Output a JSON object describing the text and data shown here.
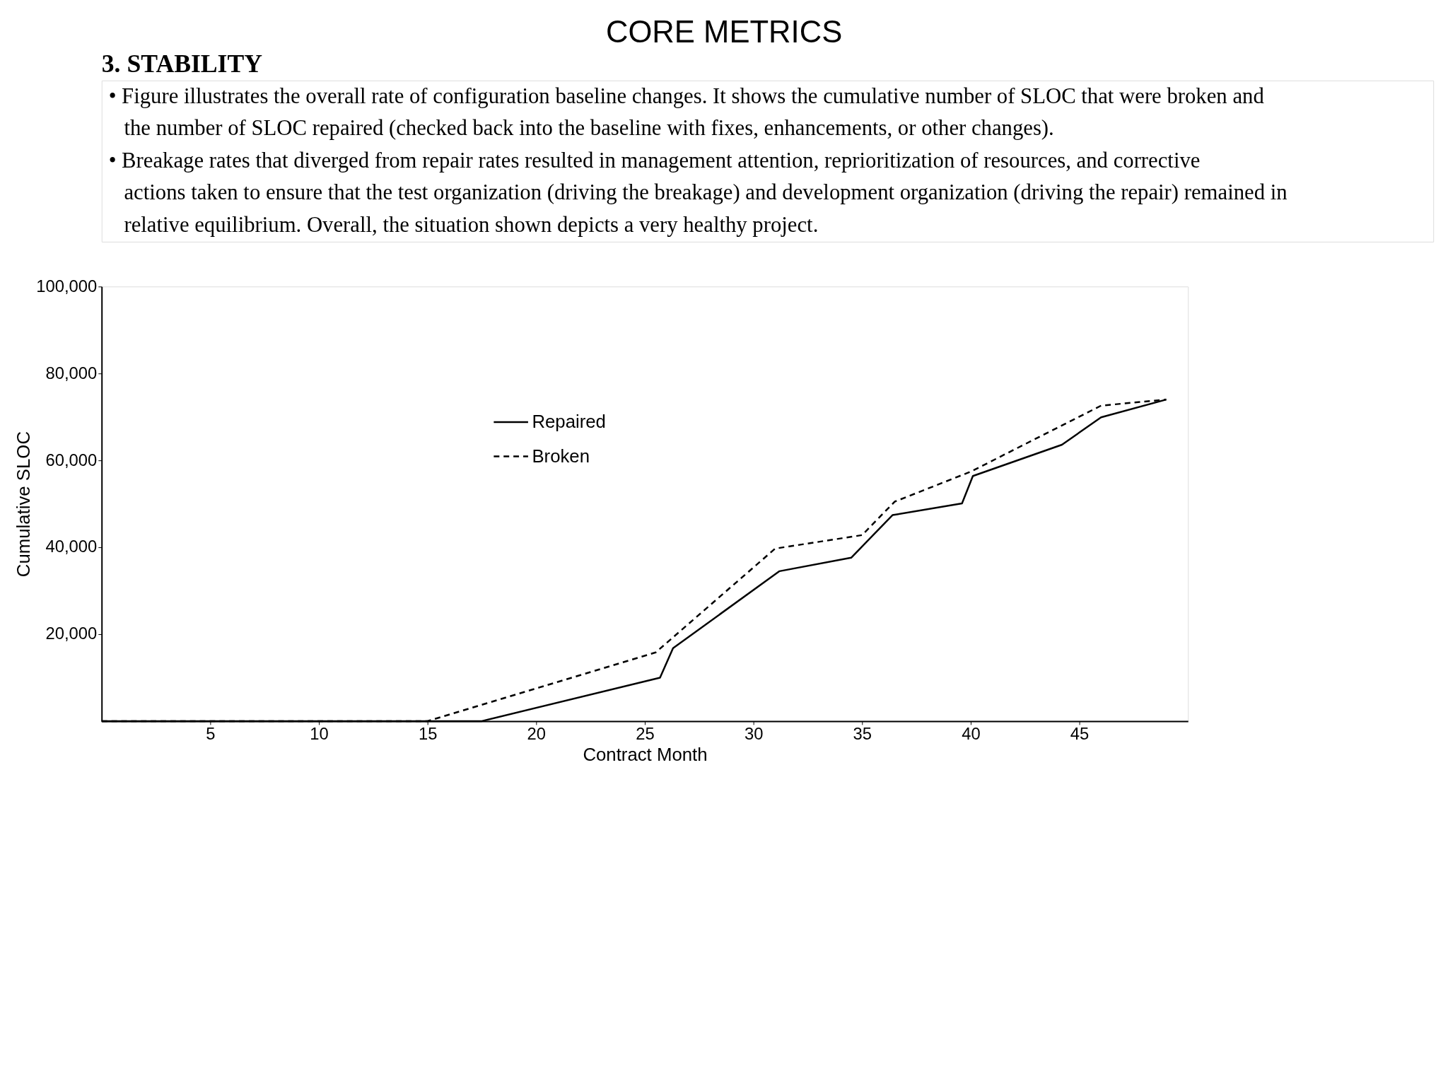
{
  "chart_data": {
    "type": "line",
    "title": "CORE METRICS",
    "subtitle": "3. STABILITY",
    "annotations": [
      "• Figure illustrates the overall rate of configuration baseline changes. It shows the cumulative number of SLOC that were broken and the number of SLOC repaired (checked back into the baseline with fixes, enhancements, or other changes).",
      "• Breakage rates that diverged from repair rates resulted in management attention, reprioritization of resources, and corrective actions taken to ensure that the test organization (driving the breakage) and development organization (driving the repair) remained in relative equilibrium. Overall, the situation shown depicts a very healthy project."
    ],
    "xlabel": "Contract Month",
    "ylabel": "Cumulative SLOC",
    "xlim": [
      0,
      50
    ],
    "xticks": [
      5,
      10,
      15,
      20,
      25,
      30,
      35,
      40,
      45
    ],
    "ylim": [
      0,
      100000
    ],
    "yticks": [
      {
        "value": 20000,
        "label": "20,000"
      },
      {
        "value": 40000,
        "label": "40,000"
      },
      {
        "value": 60000,
        "label": "60,000"
      },
      {
        "value": 80000,
        "label": "80,000"
      },
      {
        "value": 100000,
        "label": "100,000"
      }
    ],
    "grid": false,
    "legend": "top",
    "marker": "none",
    "series": [
      {
        "name": "Repaired",
        "color": "#000000",
        "line_style": "solid",
        "x": [
          0,
          17.5,
          25.7,
          26.3,
          31.2,
          34.5,
          36.4,
          39.6,
          40.1,
          44.2,
          46,
          49
        ],
        "values": [
          0,
          0,
          10000,
          16800,
          34500,
          37600,
          47400,
          50100,
          56400,
          63600,
          69900,
          74000
        ]
      },
      {
        "name": "Broken",
        "color": "#000000",
        "line_style": "dashed",
        "x": [
          0,
          15,
          25.5,
          31,
          35,
          36.5,
          40,
          46,
          49
        ],
        "values": [
          0,
          0,
          15800,
          39700,
          42800,
          50500,
          57400,
          72600,
          74000
        ]
      }
    ]
  }
}
